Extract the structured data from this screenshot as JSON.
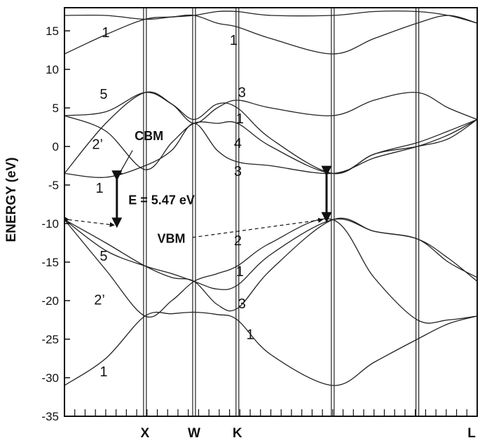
{
  "chart_data": {
    "type": "line",
    "title": "",
    "xlabel": "",
    "ylabel": "ENERGY (eV)",
    "ylim": [
      -35,
      18
    ],
    "yticks": [
      15,
      10,
      5,
      0,
      -5,
      -10,
      -15,
      -20,
      -25,
      -30,
      -35
    ],
    "xlim": [
      0,
      1
    ],
    "k_points": [
      {
        "label": "",
        "x": 0.0
      },
      {
        "label": "X",
        "x": 0.195
      },
      {
        "label": "W",
        "x": 0.314
      },
      {
        "label": "K",
        "x": 0.419
      },
      {
        "label": "",
        "x": 0.65
      },
      {
        "label": "",
        "x": 0.855
      },
      {
        "label": "L",
        "x": 1.0
      }
    ],
    "series": [
      {
        "x": [
          0,
          0.1,
          0.195,
          0.26,
          0.314,
          0.37,
          0.419,
          0.5,
          0.65,
          0.75,
          0.855,
          0.93,
          1.0
        ],
        "y": [
          -31,
          -27.5,
          -22,
          -21.7,
          -21.5,
          -21.8,
          -22.5,
          -27,
          -31,
          -28,
          -25,
          -23,
          -22
        ]
      },
      {
        "x": [
          0,
          0.1,
          0.195,
          0.26,
          0.314,
          0.37,
          0.419,
          0.5,
          0.65,
          0.75,
          0.855,
          0.93,
          1.0
        ],
        "y": [
          -9.5,
          -16,
          -22,
          -20,
          -17.5,
          -16.5,
          -15.5,
          -12.5,
          -9.5,
          -17,
          -22.5,
          -22.5,
          -22
        ]
      },
      {
        "x": [
          0,
          0.1,
          0.195,
          0.26,
          0.314,
          0.37,
          0.419,
          0.5,
          0.65,
          0.75,
          0.855,
          0.93,
          1.0
        ],
        "y": [
          -9.5,
          -13.5,
          -15.5,
          -16.5,
          -17.5,
          -18.5,
          -18,
          -14,
          -9.5,
          -11,
          -12,
          -15,
          -17
        ]
      },
      {
        "x": [
          0,
          0.1,
          0.195,
          0.26,
          0.314,
          0.37,
          0.419,
          0.5,
          0.65,
          0.75,
          0.855,
          0.93,
          1.0
        ],
        "y": [
          -9.5,
          -12.5,
          -15.5,
          -17,
          -17.5,
          -20.5,
          -21,
          -16,
          -9.5,
          -11,
          -12,
          -14.5,
          -17.5
        ]
      },
      {
        "x": [
          0,
          0.1,
          0.195,
          0.26,
          0.314,
          0.37,
          0.419,
          0.5,
          0.65,
          0.75,
          0.855,
          0.93,
          1.0
        ],
        "y": [
          -3.5,
          -4,
          -2.5,
          -0.5,
          3,
          -0.5,
          -2,
          -2.5,
          -3.5,
          -1.5,
          0,
          1.5,
          3.5
        ]
      },
      {
        "x": [
          0,
          0.1,
          0.195,
          0.26,
          0.314,
          0.37,
          0.419,
          0.5,
          0.65,
          0.75,
          0.855,
          0.93,
          1.0
        ],
        "y": [
          4,
          2,
          -3,
          0.5,
          3,
          3,
          3,
          0,
          -3.5,
          -1,
          0.5,
          2,
          3.5
        ]
      },
      {
        "x": [
          0,
          0.1,
          0.195,
          0.26,
          0.314,
          0.37,
          0.419,
          0.5,
          0.65,
          0.75,
          0.855,
          0.93,
          1.0
        ],
        "y": [
          -3.5,
          3,
          7,
          5.5,
          3,
          5,
          6,
          5,
          4,
          6,
          7,
          5,
          3.5
        ]
      },
      {
        "x": [
          0,
          0.1,
          0.195,
          0.26,
          0.314,
          0.37,
          0.419,
          0.5,
          0.65,
          0.75,
          0.855,
          0.93,
          1.0
        ],
        "y": [
          4,
          4.5,
          7,
          5.5,
          3.5,
          5.5,
          5,
          1,
          -3.5,
          -1,
          0,
          1,
          3.5
        ]
      },
      {
        "x": [
          0,
          0.1,
          0.195,
          0.26,
          0.314,
          0.37,
          0.419,
          0.5,
          0.65,
          0.75,
          0.855,
          0.93,
          1.0
        ],
        "y": [
          12,
          14.5,
          16.5,
          16.8,
          17,
          16,
          15.5,
          14,
          12,
          14,
          16,
          17,
          16
        ]
      },
      {
        "x": [
          0,
          0.1,
          0.195,
          0.26,
          0.314,
          0.37,
          0.419,
          0.5,
          0.65,
          0.75,
          0.855,
          0.93,
          1.0
        ],
        "y": [
          17,
          17,
          16.5,
          16.8,
          17,
          17.5,
          17.5,
          17,
          17,
          17.5,
          17.5,
          17,
          16
        ]
      }
    ],
    "band_labels": [
      {
        "text": "1",
        "x": 0.1,
        "y": 14.2
      },
      {
        "text": "1",
        "x": 0.41,
        "y": 13.2
      },
      {
        "text": "5",
        "x": 0.095,
        "y": 6.2
      },
      {
        "text": "3",
        "x": 0.43,
        "y": 6.4
      },
      {
        "text": "1",
        "x": 0.425,
        "y": 3.0
      },
      {
        "text": "2’",
        "x": 0.08,
        "y": -0.3
      },
      {
        "text": "4",
        "x": 0.42,
        "y": -0.2
      },
      {
        "text": "3",
        "x": 0.42,
        "y": -3.8
      },
      {
        "text": "1",
        "x": 0.085,
        "y": -6.0
      },
      {
        "text": "2",
        "x": 0.42,
        "y": -12.8
      },
      {
        "text": "5",
        "x": 0.095,
        "y": -14.8
      },
      {
        "text": "1",
        "x": 0.425,
        "y": -16.8
      },
      {
        "text": "2’",
        "x": 0.085,
        "y": -20.5
      },
      {
        "text": "3",
        "x": 0.43,
        "y": -21.0
      },
      {
        "text": "1",
        "x": 0.45,
        "y": -25.0
      },
      {
        "text": "1",
        "x": 0.095,
        "y": -29.8
      }
    ],
    "annotations": [
      {
        "text": "CBM",
        "x": 0.17,
        "y": 0.8
      },
      {
        "text": "E = 5.47 eV",
        "x": 0.155,
        "y": -7.5
      },
      {
        "text": "VBM",
        "x": 0.225,
        "y": -12.5
      }
    ],
    "gap_arrows": [
      {
        "x": 0.127,
        "y_from": -4.2,
        "y_to": -10.3
      },
      {
        "x": 0.635,
        "y_from": -3.6,
        "y_to": -9.6
      }
    ]
  }
}
